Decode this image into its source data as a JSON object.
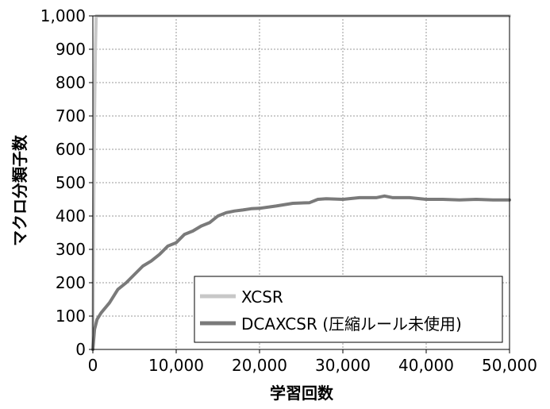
{
  "chart_data": {
    "type": "line",
    "xlabel": "学習回数",
    "ylabel": "マクロ分類子数",
    "xlim": [
      0,
      50000
    ],
    "ylim": [
      0,
      1000
    ],
    "grid": true,
    "legend_position": "bottom-right",
    "x_ticks": [
      "0",
      "10,000",
      "20,000",
      "30,000",
      "40,000",
      "50,000"
    ],
    "y_ticks": [
      "0",
      "100",
      "200",
      "300",
      "400",
      "500",
      "600",
      "700",
      "800",
      "900",
      "1,000"
    ],
    "series": [
      {
        "name": "XCSR",
        "color": "#c8c8c8",
        "x": [
          0,
          100,
          200,
          300,
          400,
          500,
          1000,
          50000
        ],
        "y": [
          0,
          400,
          700,
          900,
          1000,
          1000,
          1000,
          1000
        ]
      },
      {
        "name": "DCAXCSR (圧縮ルール未使用)",
        "color": "#7a7a7a",
        "x": [
          0,
          200,
          500,
          1000,
          2000,
          3000,
          4000,
          5000,
          6000,
          7000,
          8000,
          9000,
          10000,
          11000,
          12000,
          13000,
          14000,
          15000,
          16000,
          17000,
          18000,
          19000,
          20000,
          22000,
          24000,
          26000,
          27000,
          28000,
          30000,
          32000,
          34000,
          35000,
          36000,
          38000,
          40000,
          42000,
          44000,
          46000,
          48000,
          50000
        ],
        "y": [
          0,
          60,
          90,
          110,
          140,
          180,
          200,
          225,
          250,
          265,
          285,
          310,
          320,
          345,
          355,
          370,
          380,
          400,
          410,
          415,
          418,
          422,
          423,
          430,
          438,
          440,
          450,
          452,
          450,
          455,
          455,
          460,
          455,
          455,
          450,
          450,
          448,
          450,
          448,
          448
        ]
      }
    ]
  }
}
